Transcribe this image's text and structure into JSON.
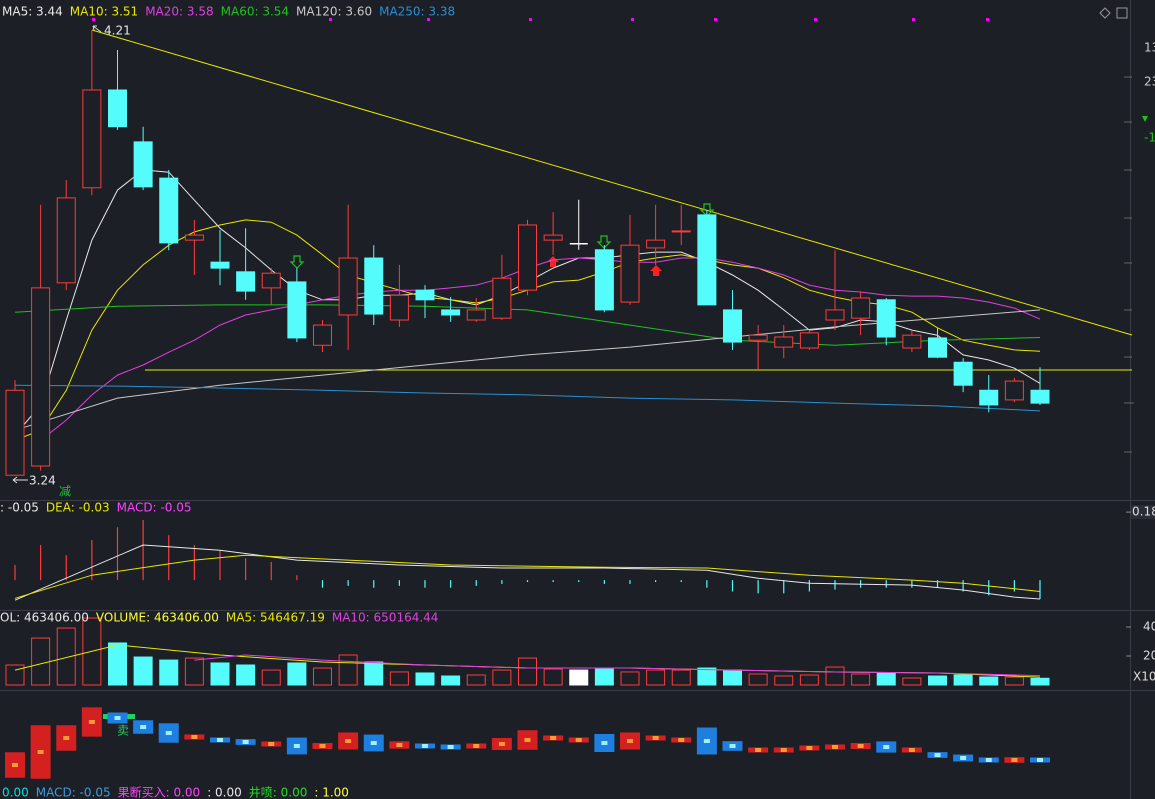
{
  "chart_data": [
    {
      "type": "candlestick",
      "up_color": "#ff3b3b",
      "down_color": "#54fcfc",
      "flat_color": "#ffffff",
      "ylim": [
        3.186,
        4.275
      ],
      "open": [
        3.24,
        3.26,
        3.659,
        3.866,
        4.079,
        3.966,
        3.887,
        3.752,
        3.704,
        3.683,
        3.648,
        3.661,
        3.523,
        3.589,
        3.713,
        3.578,
        3.643,
        3.6,
        3.578,
        3.582,
        3.643,
        3.752,
        3.744,
        3.731,
        3.617,
        3.735,
        3.77,
        3.807,
        3.6,
        3.534,
        3.519,
        3.517,
        3.578,
        3.582,
        3.622,
        3.517,
        3.539,
        3.486,
        3.425,
        3.404,
        3.425
      ],
      "high": [
        3.447,
        3.829,
        3.883,
        4.21,
        4.166,
        3.999,
        3.905,
        3.796,
        3.774,
        3.778,
        3.691,
        3.691,
        3.578,
        3.829,
        3.741,
        3.698,
        3.654,
        3.628,
        3.626,
        3.72,
        3.796,
        3.813,
        3.84,
        3.741,
        3.807,
        3.829,
        3.829,
        3.818,
        3.643,
        3.567,
        3.567,
        3.556,
        3.73,
        3.639,
        3.626,
        3.556,
        3.56,
        3.495,
        3.458,
        3.452,
        3.475
      ],
      "low": [
        3.24,
        3.25,
        3.643,
        3.85,
        3.992,
        3.861,
        3.73,
        3.676,
        3.654,
        3.622,
        3.611,
        3.53,
        3.508,
        3.513,
        3.567,
        3.563,
        3.582,
        3.574,
        3.574,
        3.578,
        3.632,
        3.72,
        3.731,
        3.595,
        3.611,
        3.698,
        3.741,
        3.611,
        3.513,
        3.469,
        3.495,
        3.513,
        3.556,
        3.545,
        3.523,
        3.508,
        3.495,
        3.421,
        3.377,
        3.399,
        3.393
      ],
      "close": [
        3.425,
        3.648,
        3.844,
        4.079,
        3.999,
        3.868,
        3.746,
        3.763,
        3.691,
        3.641,
        3.68,
        3.539,
        3.567,
        3.713,
        3.591,
        3.632,
        3.622,
        3.589,
        3.6,
        3.669,
        3.785,
        3.763,
        3.744,
        3.6,
        3.741,
        3.752,
        3.772,
        3.611,
        3.53,
        3.545,
        3.541,
        3.55,
        3.6,
        3.626,
        3.541,
        3.545,
        3.497,
        3.436,
        3.393,
        3.445,
        3.397
      ],
      "series": [
        {
          "name": "MA5: 3.44",
          "color": "#e8e8e8",
          "values": [
            3.327,
            3.393,
            3.578,
            3.752,
            3.861,
            3.905,
            3.9,
            3.839,
            3.778,
            3.735,
            3.687,
            3.643,
            3.622,
            3.622,
            3.632,
            3.632,
            3.637,
            3.622,
            3.611,
            3.632,
            3.661,
            3.691,
            3.713,
            3.713,
            3.72,
            3.726,
            3.726,
            3.704,
            3.676,
            3.643,
            3.6,
            3.556,
            3.561,
            3.578,
            3.574,
            3.556,
            3.545,
            3.502,
            3.491,
            3.473,
            3.44
          ]
        },
        {
          "name": "MA10: 3.51",
          "color": "#e8e800",
          "values": [
            3.316,
            3.338,
            3.425,
            3.556,
            3.643,
            3.698,
            3.741,
            3.77,
            3.785,
            3.796,
            3.791,
            3.763,
            3.72,
            3.676,
            3.659,
            3.643,
            3.628,
            3.622,
            3.615,
            3.626,
            3.643,
            3.661,
            3.665,
            3.683,
            3.704,
            3.713,
            3.72,
            3.709,
            3.698,
            3.691,
            3.67,
            3.643,
            3.628,
            3.617,
            3.611,
            3.595,
            3.561,
            3.534,
            3.523,
            3.513,
            3.51
          ]
        },
        {
          "name": "MA20: 3.58",
          "color": "#e040e0",
          "values": [
            null,
            3.316,
            3.36,
            3.415,
            3.458,
            3.48,
            3.508,
            3.534,
            3.567,
            3.589,
            3.6,
            3.611,
            3.622,
            3.632,
            3.639,
            3.643,
            3.643,
            3.648,
            3.654,
            3.669,
            3.691,
            3.709,
            3.713,
            3.709,
            3.704,
            3.704,
            3.713,
            3.713,
            3.704,
            3.691,
            3.676,
            3.654,
            3.643,
            3.639,
            3.632,
            3.63,
            3.63,
            3.626,
            3.617,
            3.604,
            3.58
          ]
        },
        {
          "name": "MA60: 3.54",
          "color": "#20c020",
          "x": [
            0,
            4,
            8,
            12,
            16,
            20,
            24,
            28,
            32,
            36,
            40
          ],
          "values": [
            3.595,
            3.608,
            3.611,
            3.611,
            3.608,
            3.6,
            3.567,
            3.534,
            3.523,
            3.534,
            3.54
          ]
        },
        {
          "name": "MA120: 3.60",
          "color": "#c8c8c8",
          "x": [
            0,
            4,
            8,
            12,
            16,
            20,
            24,
            28,
            32,
            36,
            40
          ],
          "values": [
            3.338,
            3.408,
            3.436,
            3.458,
            3.48,
            3.502,
            3.519,
            3.541,
            3.563,
            3.582,
            3.6
          ]
        },
        {
          "name": "MA250: 3.38",
          "color": "#2a8fd0",
          "x": [
            0,
            4,
            8,
            12,
            16,
            20,
            24,
            28,
            32,
            36,
            40
          ],
          "values": [
            3.436,
            3.434,
            3.43,
            3.425,
            3.419,
            3.415,
            3.408,
            3.404,
            3.397,
            3.391,
            3.38
          ]
        }
      ],
      "marker_text": "减",
      "side_labels": [
        "13",
        "23",
        "-1"
      ]
    },
    {
      "type": "macd",
      "ylim": [
        -0.079,
        0.212
      ],
      "yticks": [
        0.18
      ],
      "series": [
        {
          "name": ": -0.05",
          "color": "#e8e8e8",
          "x": [
            0,
            5,
            8,
            11,
            15,
            19,
            23,
            27,
            29,
            31,
            35,
            37,
            39,
            40
          ],
          "values": [
            -0.053,
            0.093,
            0.079,
            0.053,
            0.04,
            0.032,
            0.032,
            0.026,
            0.005,
            -0.008,
            -0.013,
            -0.026,
            -0.045,
            -0.05
          ]
        },
        {
          "name": "DEA: -0.03",
          "color": "#e8e800",
          "x": [
            0,
            3,
            7,
            9,
            13,
            17,
            23,
            27,
            31,
            35,
            37,
            40
          ],
          "values": [
            -0.048,
            0.013,
            0.053,
            0.066,
            0.053,
            0.04,
            0.034,
            0.032,
            0.013,
            0,
            -0.008,
            -0.03
          ]
        },
        {
          "name": "MACD: -0.05",
          "color": "#ff40ff",
          "values": [
            0.04,
            0.093,
            0.066,
            0.106,
            0.14,
            0.159,
            0.119,
            0.093,
            0.079,
            0.058,
            0.048,
            0.013,
            -0.02,
            -0.015,
            -0.02,
            -0.015,
            -0.02,
            -0.02,
            -0.015,
            -0.01,
            -0.005,
            -0.005,
            -0.005,
            -0.01,
            -0.01,
            -0.005,
            -0.005,
            -0.02,
            -0.03,
            -0.035,
            -0.035,
            -0.03,
            -0.025,
            -0.02,
            -0.02,
            -0.02,
            -0.02,
            -0.03,
            -0.04,
            -0.03,
            -0.05
          ]
        }
      ]
    },
    {
      "type": "volume",
      "header": "OL: 463406.00",
      "ylim": [
        0,
        4830000
      ],
      "yticks": [
        {
          "value": 4000000,
          "label": "40"
        },
        {
          "value": 2000000,
          "label": "20"
        }
      ],
      "unit_label": "X10",
      "series": [
        {
          "name": "VOLUME: 463406.00",
          "color": "#ffff33",
          "values": [
            1380000,
            3240000,
            3930000,
            4620000,
            2900000,
            1930000,
            1720000,
            1860000,
            1520000,
            1380000,
            1030000,
            1520000,
            1170000,
            2070000,
            1590000,
            900000,
            830000,
            620000,
            690000,
            1030000,
            1860000,
            1100000,
            1030000,
            1100000,
            900000,
            1030000,
            1030000,
            1170000,
            1030000,
            760000,
            620000,
            690000,
            1240000,
            760000,
            830000,
            480000,
            620000,
            690000,
            550000,
            550000,
            463406
          ]
        },
        {
          "name": "MA5: 546467.19",
          "color": "#e8e800",
          "x": [
            0,
            4,
            8,
            12,
            16,
            20,
            24,
            28,
            32,
            36,
            40
          ],
          "values": [
            1030000,
            2760000,
            2070000,
            1590000,
            1380000,
            1170000,
            1170000,
            1030000,
            900000,
            830000,
            546467.19
          ]
        },
        {
          "name": "MA10: 650164.44",
          "color": "#e040e0",
          "x": [
            7,
            9,
            12,
            16,
            20,
            24,
            28,
            32,
            36,
            40
          ],
          "values": [
            1720000,
            2070000,
            1720000,
            1380000,
            1170000,
            1170000,
            1030000,
            900000,
            830000,
            650164.44
          ]
        }
      ]
    },
    {
      "type": "signal",
      "ylim": [
        0,
        100
      ],
      "legend": [
        {
          "text": "0.00",
          "color": "#00e0e0"
        },
        {
          "text": "MACD: -0.05",
          "color": "#3c9be0"
        },
        {
          "text": "果断买入: 0.00",
          "color": "#ff40ff"
        },
        {
          "text": ": 0.00",
          "color": "#e8e8e8"
        },
        {
          "text": "井喷: 0.00",
          "color": "#20e020"
        },
        {
          "text": ": 1.00",
          "color": "#ffff33"
        }
      ],
      "values": [
        25,
        38,
        52,
        68,
        72,
        63,
        57,
        53,
        50,
        48,
        46,
        44,
        44,
        49,
        47,
        45,
        44,
        43,
        44,
        46,
        50,
        52,
        50,
        47,
        49,
        52,
        50,
        49,
        44,
        40,
        40,
        42,
        43,
        44,
        43,
        40,
        35,
        32,
        30,
        30,
        30
      ],
      "sell_text": "卖"
    }
  ]
}
